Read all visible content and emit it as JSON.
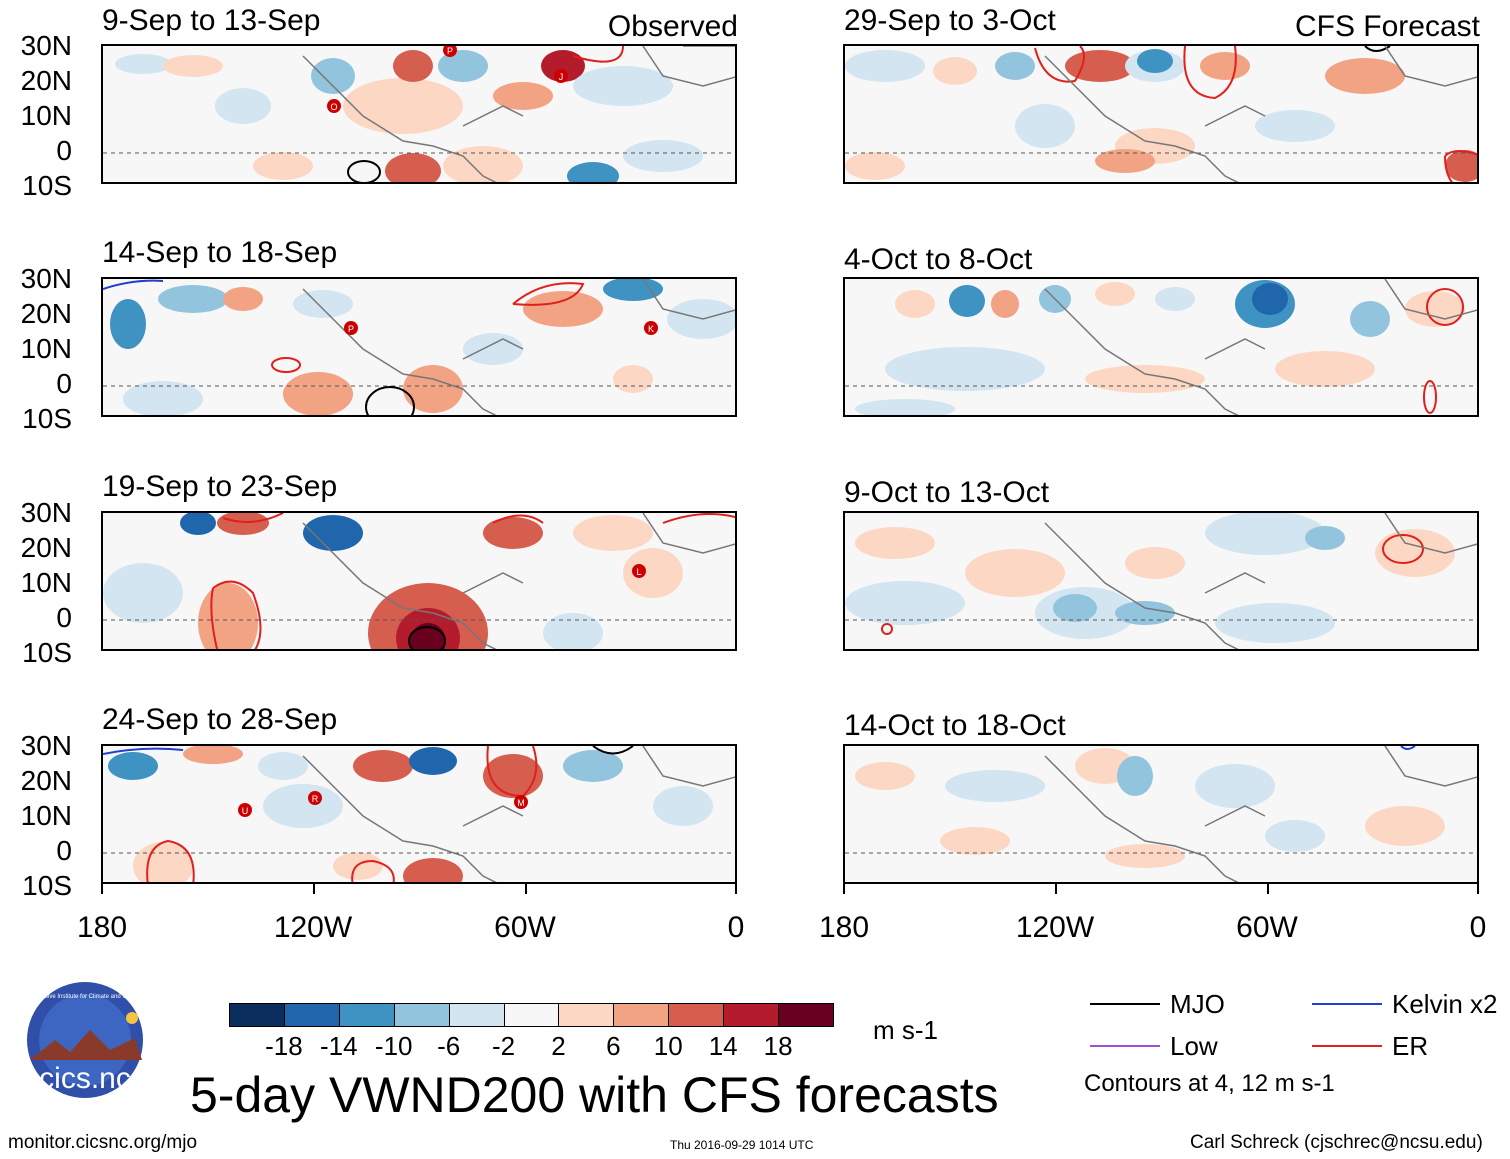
{
  "panels": {
    "observed_label": "Observed",
    "forecast_label": "CFS Forecast",
    "left": [
      {
        "title": "9-Sep to 13-Sep"
      },
      {
        "title": "14-Sep to 18-Sep"
      },
      {
        "title": "19-Sep to 23-Sep"
      },
      {
        "title": "24-Sep to 28-Sep"
      }
    ],
    "right": [
      {
        "title": "29-Sep to 3-Oct"
      },
      {
        "title": "4-Oct to 8-Oct"
      },
      {
        "title": "9-Oct to 13-Oct"
      },
      {
        "title": "14-Oct to 18-Oct"
      }
    ]
  },
  "axes": {
    "lat_labels": [
      "30N",
      "20N",
      "10N",
      "0",
      "10S"
    ],
    "lon_labels": [
      "180",
      "120W",
      "60W",
      "0"
    ]
  },
  "storms": {
    "p1": [
      "O",
      "P",
      "J"
    ],
    "p2": [
      "P",
      "K"
    ],
    "p3": [
      "L"
    ],
    "p4": [
      "U",
      "R",
      "M"
    ]
  },
  "colorbar": {
    "colors": [
      "#0b2e5e",
      "#1f66ad",
      "#3f93c3",
      "#92c4de",
      "#d2e5f0",
      "#f7f7f7",
      "#fcd8c4",
      "#f2a383",
      "#d55e4f",
      "#b41c2d",
      "#6a0020"
    ],
    "labels": [
      "-18",
      "-14",
      "-10",
      "-6",
      "-2",
      "2",
      "6",
      "10",
      "14",
      "18"
    ],
    "units": "m s-1"
  },
  "main_title": "5-day VWND200 with CFS forecasts",
  "legend": {
    "items": [
      {
        "label": "MJO",
        "color": "#000000"
      },
      {
        "label": "Kelvin x2",
        "color": "#1f3fd0"
      },
      {
        "label": "Low",
        "color": "#a24fd8"
      },
      {
        "label": "ER",
        "color": "#e0201c"
      }
    ],
    "note": "Contours at 4, 12 m s-1"
  },
  "logo": {
    "text": "cics.nc",
    "ring_text": "Cooperative Institute for Climate and Satellites"
  },
  "footer": {
    "url": "monitor.cicsnc.org/mjo",
    "timestamp": "Thu 2016-09-29 1014 UTC",
    "credit": "Carl Schreck (cjschrec@ncsu.edu)"
  }
}
